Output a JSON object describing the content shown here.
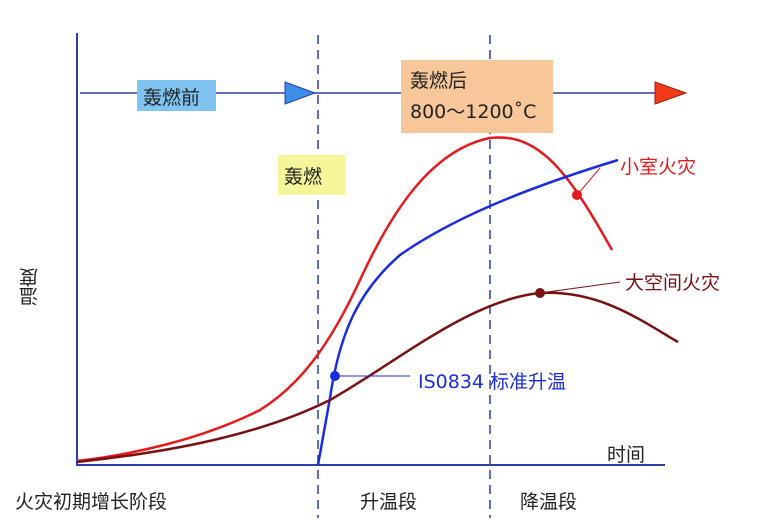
{
  "colors": {
    "axis": "#2b3fa6",
    "room_fire": "#e8191d",
    "large_space_fire": "#7a1010",
    "iso834": "#1a2de0",
    "pre_box": "#7fc4f0",
    "post_box": "#f7c79a",
    "flashover_box": "#f5f59a"
  },
  "axes": {
    "ylabel": "温度",
    "xlabel": "时间"
  },
  "phases": {
    "pre_flashover": "轰燃前",
    "post_flashover": "轰燃后",
    "post_range": "800～1200˚C",
    "flashover": "轰燃"
  },
  "stages": [
    "火灾初期增长阶段",
    "升温段",
    "降温段"
  ],
  "curves": {
    "room_fire": "小室火灾",
    "large_space_fire": "大空间火灾",
    "iso834": "IS0834 标准升温"
  }
}
